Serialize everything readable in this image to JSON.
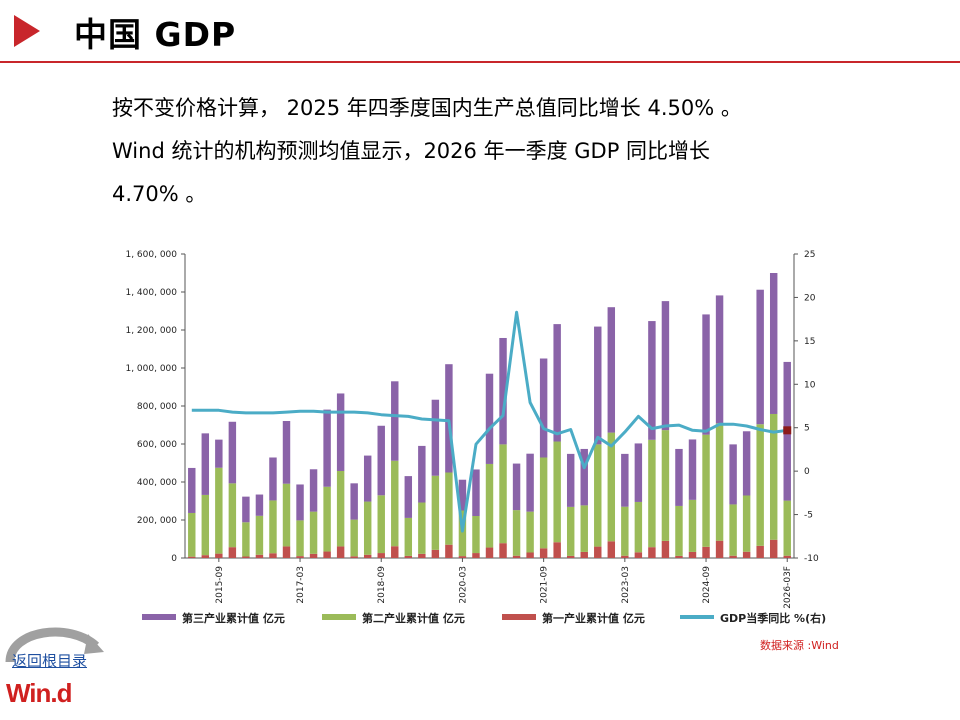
{
  "header": {
    "title": "中国 GDP"
  },
  "paragraph": {
    "line1": "按不变价格计算， 2025 年四季度国内生产总值同比增长 4.50% 。",
    "line2": "Wind 统计的机构预测均值显示，2026 年一季度 GDP 同比增长",
    "line3": "4.70% 。"
  },
  "colors": {
    "tertiary": "#8a63a8",
    "secondary": "#9bbb59",
    "primary": "#c0504d",
    "line": "#4bacc6",
    "accent": "#c8262b"
  },
  "chart_data": {
    "type": "bar",
    "stacked": true,
    "categories": [
      "2015-03",
      "2015-06",
      "2015-09",
      "2015-12",
      "2016-03",
      "2016-06",
      "2016-09",
      "2016-12",
      "2017-03",
      "2017-06",
      "2017-09",
      "2017-12",
      "2018-03",
      "2018-06",
      "2018-09",
      "2018-12",
      "2019-03",
      "2019-06",
      "2019-09",
      "2019-12",
      "2020-03",
      "2020-06",
      "2020-09",
      "2020-12",
      "2021-03",
      "2021-06",
      "2021-09",
      "2021-12",
      "2022-03",
      "2022-06",
      "2022-09",
      "2022-12",
      "2023-03",
      "2023-06",
      "2023-09",
      "2023-12",
      "2024-03",
      "2024-06",
      "2024-09",
      "2024-12",
      "2025-03",
      "2025-06",
      "2025-09",
      "2025-12",
      "2026-03F"
    ],
    "x_tick_labels": [
      "2015-09",
      "2017-03",
      "2018-09",
      "2020-03",
      "2021-09",
      "2023-03",
      "2024-09",
      "2026-03F"
    ],
    "series": [
      {
        "name": "第一产业累计值 亿元",
        "values": [
          7,
          15,
          23,
          57,
          8,
          17,
          25,
          61,
          10,
          22,
          34,
          61,
          9,
          17,
          26,
          62,
          11,
          22,
          43,
          70,
          10,
          26,
          55,
          78,
          12,
          29,
          51,
          83,
          11,
          32,
          60,
          88,
          12,
          30,
          57,
          90,
          11,
          32,
          59,
          91,
          12,
          33,
          64,
          96,
          12
        ]
      },
      {
        "name": "第二产业累计值 亿元",
        "values": [
          230,
          317,
          452,
          336,
          180,
          205,
          278,
          330,
          188,
          222,
          341,
          397,
          193,
          280,
          304,
          450,
          200,
          270,
          390,
          380,
          240,
          195,
          440,
          520,
          240,
          215,
          478,
          530,
          258,
          245,
          538,
          572,
          258,
          265,
          565,
          583,
          263,
          274,
          590,
          618,
          270,
          296,
          640,
          662,
          290
        ]
      },
      {
        "name": "第三产业累计值 亿元",
        "values": [
          237,
          324,
          148,
          324,
          135,
          112,
          226,
          330,
          189,
          223,
          406,
          408,
          191,
          242,
          366,
          418,
          220,
          298,
          400,
          570,
          162,
          245,
          475,
          560,
          245,
          305,
          521,
          618,
          279,
          297,
          620,
          660,
          278,
          308,
          625,
          679,
          300,
          318,
          633,
          673,
          316,
          338,
          708,
          742,
          730
        ]
      },
      {
        "name": "GDP当季同比 %(右)",
        "values": [
          7.0,
          7.0,
          7.0,
          6.8,
          6.7,
          6.7,
          6.7,
          6.8,
          6.9,
          6.9,
          6.8,
          6.8,
          6.8,
          6.7,
          6.5,
          6.4,
          6.3,
          6.0,
          5.9,
          5.8,
          -6.9,
          3.1,
          4.9,
          6.4,
          18.3,
          7.9,
          4.9,
          4.3,
          4.8,
          0.4,
          3.9,
          2.9,
          4.5,
          6.3,
          4.9,
          5.2,
          5.3,
          4.7,
          4.6,
          5.4,
          5.4,
          5.2,
          4.8,
          4.5,
          4.7
        ]
      }
    ],
    "y_left_ticks": [
      "0",
      "200, 000",
      "400, 000",
      "600, 000",
      "800, 000",
      "1, 000, 000",
      "1, 200, 000",
      "1, 400, 000",
      "1, 600, 000"
    ],
    "ylim_left": [
      0,
      1600000
    ],
    "y_right_ticks": [
      "-10",
      "-5",
      "0",
      "5",
      "10",
      "15",
      "20",
      "25"
    ],
    "ylim_right": [
      -10,
      25
    ],
    "bar_value_unit": "thousand 亿元 (series values ×1000)",
    "legend_position": "bottom",
    "source": "数据来源 :Wind"
  },
  "nav": {
    "home_label": "返回根目录",
    "logo": "Win.d"
  }
}
